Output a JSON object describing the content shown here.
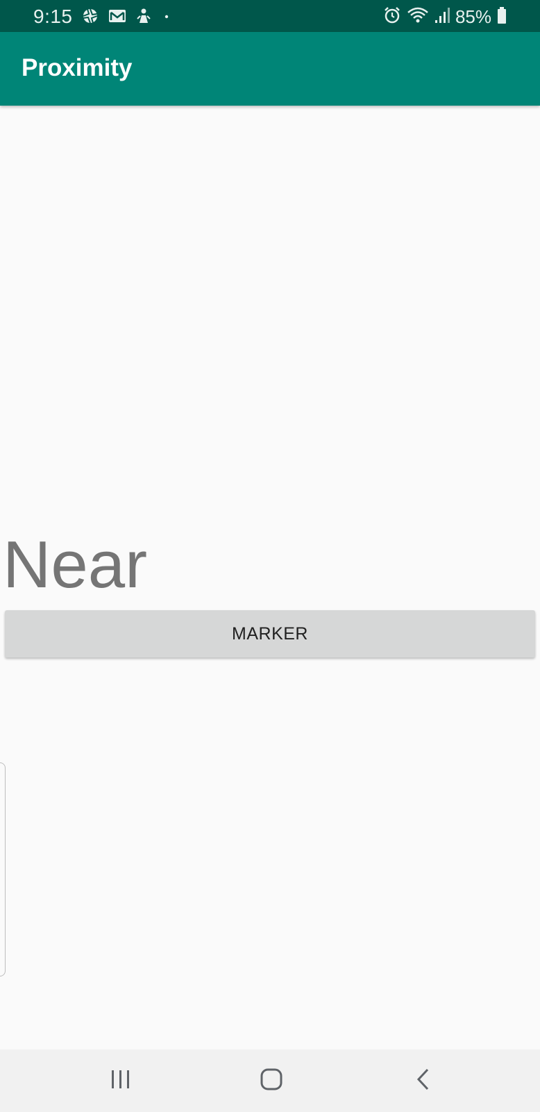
{
  "status_bar": {
    "time": "9:15",
    "battery": "85%",
    "left_icons": [
      "aperture-icon",
      "gmail-icon",
      "upload-person-icon",
      "dot-icon"
    ],
    "right_icons": [
      "alarm-icon",
      "wifi-icon",
      "signal-icon",
      "battery-icon"
    ]
  },
  "app_bar": {
    "title": "Proximity"
  },
  "main": {
    "proximity_value": "Near",
    "marker_button_label": "MARKER"
  },
  "nav_bar": {
    "buttons": [
      "recent-apps-icon",
      "home-icon",
      "back-icon"
    ]
  },
  "colors": {
    "status_bar": "#00574b",
    "app_bar": "#008577",
    "background": "#fafafa",
    "button": "#d6d7d7",
    "value_text": "#757575"
  }
}
